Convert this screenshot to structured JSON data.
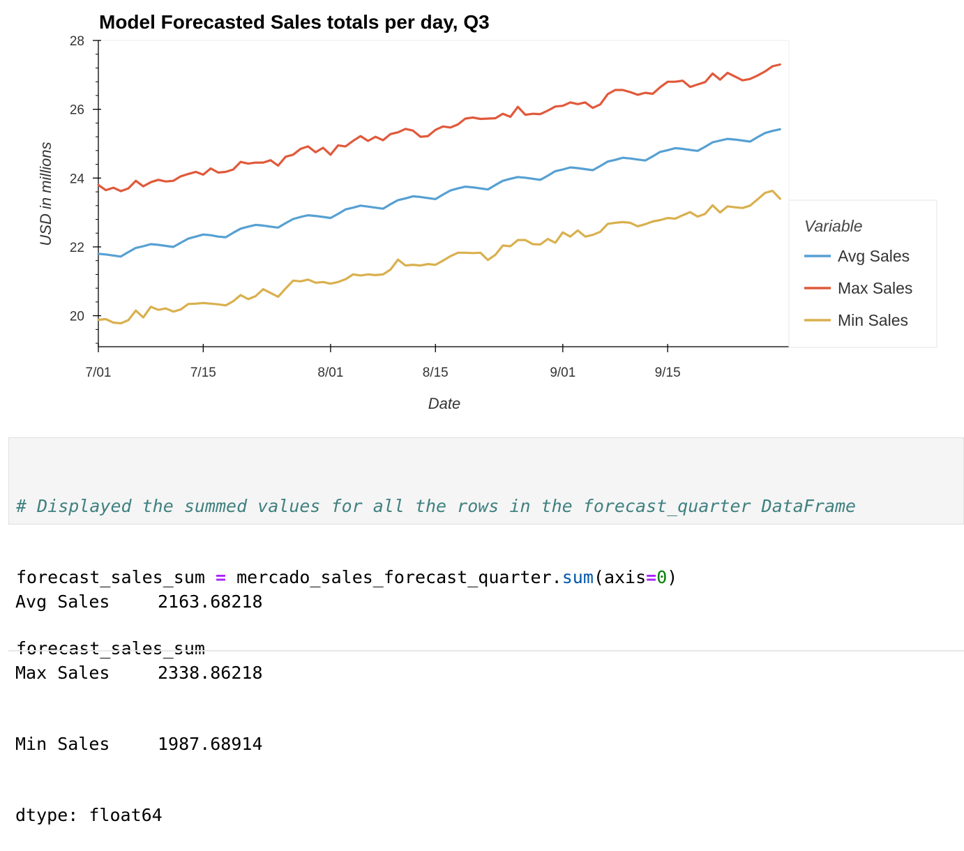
{
  "chart_data": {
    "type": "line",
    "title": "Model Forecasted Sales totals per day, Q3",
    "xlabel": "Date",
    "ylabel": "USD in millions",
    "x_tick_labels": [
      "7/01",
      "7/15",
      "8/01",
      "8/15",
      "9/01",
      "9/15"
    ],
    "y_ticks": [
      20,
      22,
      24,
      26,
      28
    ],
    "ylim": [
      19.1,
      28
    ],
    "xlim_days": [
      0,
      92
    ],
    "legend_title": "Variable",
    "legend_position": "right",
    "grid": false,
    "series": [
      {
        "name": "Avg Sales",
        "color": "#56a0d3",
        "values": [
          21.8,
          21.78,
          21.75,
          21.72,
          21.85,
          21.97,
          22.02,
          22.08,
          22.06,
          22.03,
          22.0,
          22.12,
          22.24,
          22.3,
          22.36,
          22.34,
          22.3,
          22.28,
          22.41,
          22.53,
          22.59,
          22.64,
          22.62,
          22.59,
          22.56,
          22.69,
          22.81,
          22.87,
          22.92,
          22.9,
          22.87,
          22.84,
          22.96,
          23.09,
          23.14,
          23.2,
          23.17,
          23.14,
          23.11,
          23.24,
          23.36,
          23.41,
          23.47,
          23.45,
          23.42,
          23.39,
          23.52,
          23.64,
          23.7,
          23.75,
          23.73,
          23.7,
          23.67,
          23.8,
          23.92,
          23.98,
          24.03,
          24.01,
          23.98,
          23.95,
          24.07,
          24.2,
          24.25,
          24.31,
          24.29,
          24.26,
          24.23,
          24.35,
          24.48,
          24.53,
          24.59,
          24.57,
          24.54,
          24.51,
          24.63,
          24.76,
          24.81,
          24.87,
          24.85,
          24.82,
          24.79,
          24.91,
          25.04,
          25.09,
          25.14,
          25.12,
          25.09,
          25.06,
          25.19,
          25.31,
          25.37,
          25.42
        ]
      },
      {
        "name": "Max Sales",
        "color": "#e0593b",
        "values": [
          23.8,
          23.65,
          23.72,
          23.62,
          23.7,
          23.92,
          23.76,
          23.88,
          23.95,
          23.9,
          23.92,
          24.05,
          24.12,
          24.18,
          24.1,
          24.28,
          24.16,
          24.18,
          24.25,
          24.47,
          24.42,
          24.45,
          24.45,
          24.52,
          24.36,
          24.62,
          24.68,
          24.85,
          24.92,
          24.75,
          24.88,
          24.68,
          24.95,
          24.92,
          25.08,
          25.22,
          25.08,
          25.2,
          25.1,
          25.28,
          25.33,
          25.43,
          25.38,
          25.2,
          25.22,
          25.4,
          25.5,
          25.47,
          25.56,
          25.73,
          25.76,
          25.72,
          25.73,
          25.74,
          25.87,
          25.78,
          26.07,
          25.84,
          25.87,
          25.86,
          25.96,
          26.08,
          26.1,
          26.2,
          26.15,
          26.2,
          26.04,
          26.14,
          26.44,
          26.56,
          26.56,
          26.5,
          26.42,
          26.48,
          26.45,
          26.64,
          26.8,
          26.8,
          26.83,
          26.65,
          26.72,
          26.79,
          27.04,
          26.86,
          27.06,
          26.95,
          26.84,
          26.88,
          26.98,
          27.1,
          27.25,
          27.3
        ]
      },
      {
        "name": "Min Sales",
        "color": "#d9b04e",
        "values": [
          19.88,
          19.9,
          19.8,
          19.78,
          19.87,
          20.15,
          19.95,
          20.26,
          20.17,
          20.21,
          20.12,
          20.18,
          20.34,
          20.35,
          20.37,
          20.35,
          20.33,
          20.3,
          20.42,
          20.6,
          20.48,
          20.57,
          20.77,
          20.66,
          20.55,
          20.79,
          21.02,
          21.0,
          21.05,
          20.96,
          20.98,
          20.93,
          20.98,
          21.06,
          21.2,
          21.17,
          21.2,
          21.18,
          21.2,
          21.34,
          21.63,
          21.46,
          21.48,
          21.46,
          21.5,
          21.48,
          21.6,
          21.73,
          21.83,
          21.83,
          21.82,
          21.83,
          21.62,
          21.77,
          22.04,
          22.02,
          22.2,
          22.2,
          22.08,
          22.07,
          22.23,
          22.12,
          22.42,
          22.3,
          22.48,
          22.3,
          22.35,
          22.44,
          22.67,
          22.7,
          22.72,
          22.7,
          22.6,
          22.66,
          22.74,
          22.78,
          22.84,
          22.82,
          22.92,
          23.01,
          22.88,
          22.96,
          23.21,
          23.0,
          23.18,
          23.15,
          23.13,
          23.2,
          23.38,
          23.57,
          23.63,
          23.4
        ]
      }
    ]
  },
  "code_cell": {
    "comment": "# Displayed the summed values for all the rows in the forecast_quarter DataFrame",
    "var": "forecast_sales_sum",
    "op": "=",
    "obj": "mercado_sales_forecast_quarter",
    "dot": ".",
    "method": "sum",
    "paren_open": "(",
    "arg": "axis",
    "arg_op": "=",
    "arg_val": "0",
    "paren_close": ")",
    "line3": "forecast_sales_sum"
  },
  "output": {
    "rows": [
      {
        "name": "Avg Sales",
        "value": "2163.68218"
      },
      {
        "name": "Max Sales",
        "value": "2338.86218"
      },
      {
        "name": "Min Sales",
        "value": "1987.68914"
      }
    ],
    "dtype": "dtype: float64"
  }
}
